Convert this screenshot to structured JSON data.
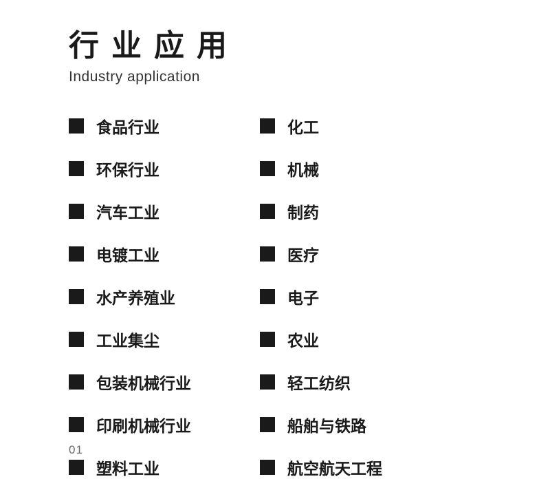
{
  "title": {
    "cn": "行业应用",
    "en": "Industry application"
  },
  "left_column": [
    "食品行业",
    "环保行业",
    "汽车工业",
    "电镀工业",
    "水产养殖业",
    "工业集尘",
    "包装机械行业",
    "印刷机械行业",
    "塑料工业"
  ],
  "right_column": [
    "化工",
    "机械",
    "制药",
    "医疗",
    "电子",
    "农业",
    "轻工纺织",
    "船舶与铁路",
    "航空航天工程"
  ],
  "page_number": "01",
  "styles": {
    "background_color": "#ffffff",
    "text_color": "#1a1a1a",
    "bullet_color": "#1a1a1a",
    "page_number_color": "#666666",
    "title_cn_fontsize": 44,
    "title_cn_letter_spacing": 18,
    "title_en_fontsize": 21,
    "item_fontsize": 23,
    "bullet_size": 22,
    "column_gap": 100,
    "row_gap": 28
  }
}
